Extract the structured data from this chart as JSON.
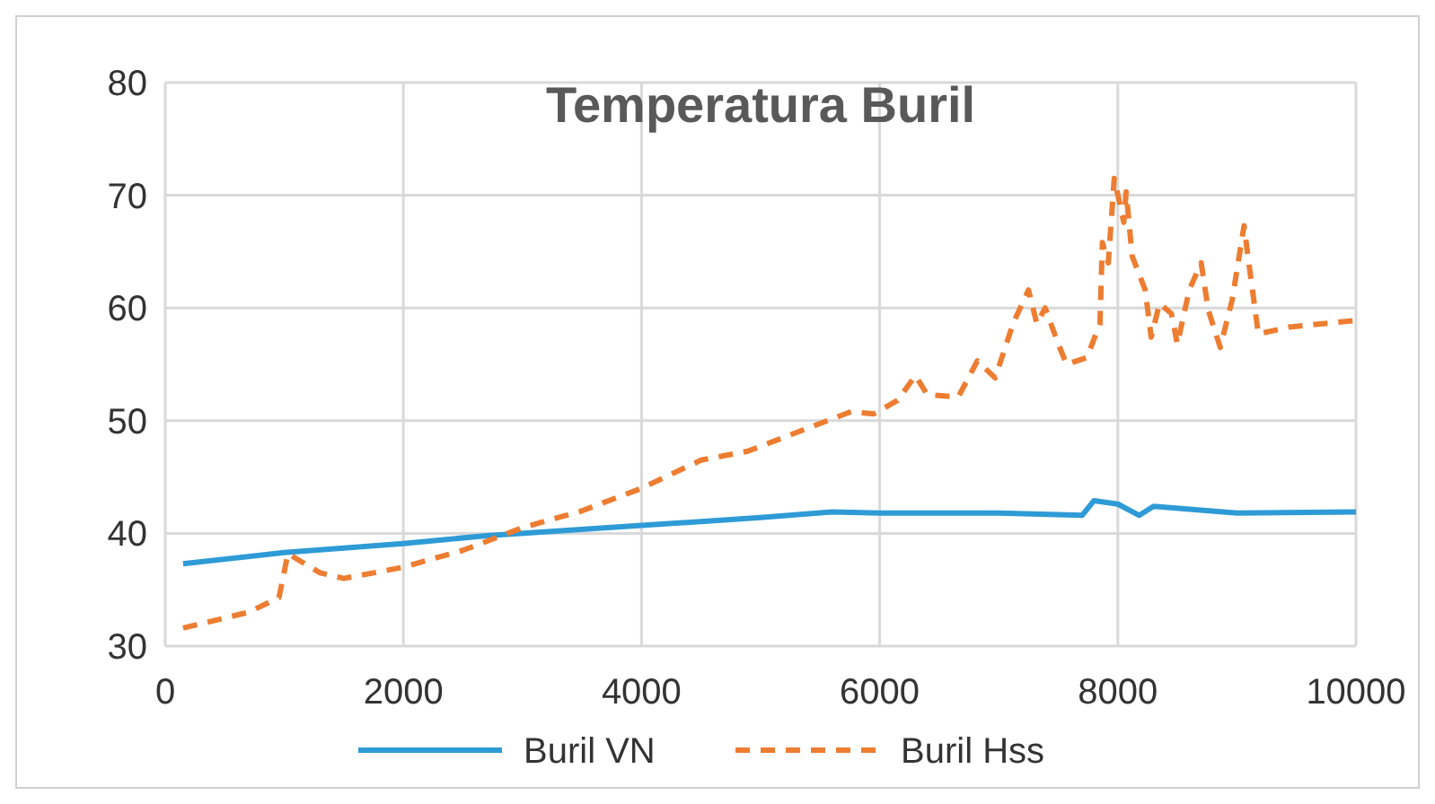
{
  "chart_data": {
    "type": "line",
    "title": "Temperatura Buril",
    "xlim": [
      0,
      10000
    ],
    "xticks": [
      0,
      2000,
      4000,
      6000,
      8000,
      10000
    ],
    "ylim": [
      30,
      80
    ],
    "yticks": [
      30,
      40,
      50,
      60,
      70,
      80
    ],
    "grid": true,
    "legend": "bottom",
    "series": [
      {
        "name": "Buril VN",
        "color": "#2e9bd6",
        "line_style": "solid",
        "x": [
          150,
          1000,
          2000,
          2700,
          4000,
          5000,
          5600,
          6000,
          7000,
          7700,
          7800,
          8000,
          8180,
          8300,
          9000,
          10000
        ],
        "values": [
          37.3,
          38.3,
          39.1,
          39.8,
          40.7,
          41.4,
          41.9,
          41.8,
          41.8,
          41.6,
          42.9,
          42.6,
          41.6,
          42.4,
          41.8,
          41.9
        ]
      },
      {
        "name": "Buril Hss",
        "color": "#ed7d31",
        "line_style": "dashed",
        "x": [
          150,
          700,
          955,
          1030,
          1300,
          1500,
          2000,
          2500,
          3000,
          3500,
          4000,
          4500,
          4894,
          5760,
          5950,
          6150,
          6300,
          6400,
          6660,
          6820,
          6970,
          7120,
          7250,
          7320,
          7390,
          7500,
          7570,
          7740,
          7850,
          7870,
          7920,
          7970,
          8050,
          8070,
          8120,
          8230,
          8280,
          8350,
          8450,
          8500,
          8600,
          8700,
          8760,
          8860,
          8960,
          9060,
          9100,
          9180,
          9440,
          10000
        ],
        "values": [
          31.6,
          33,
          34.3,
          38.2,
          36.5,
          36,
          37,
          38.5,
          40.5,
          42,
          44,
          46.5,
          47.3,
          50.8,
          50.6,
          51.8,
          54,
          52.3,
          52.1,
          55.3,
          53.8,
          58.6,
          61.6,
          58.6,
          60,
          56.8,
          55,
          55.6,
          58.6,
          65.8,
          64,
          71.5,
          67.6,
          70.3,
          64.6,
          61.6,
          57.4,
          60.4,
          59.5,
          56.8,
          61.6,
          64,
          59.8,
          56.5,
          60.7,
          67.3,
          64,
          57.7,
          58.3,
          58.9
        ]
      }
    ]
  }
}
